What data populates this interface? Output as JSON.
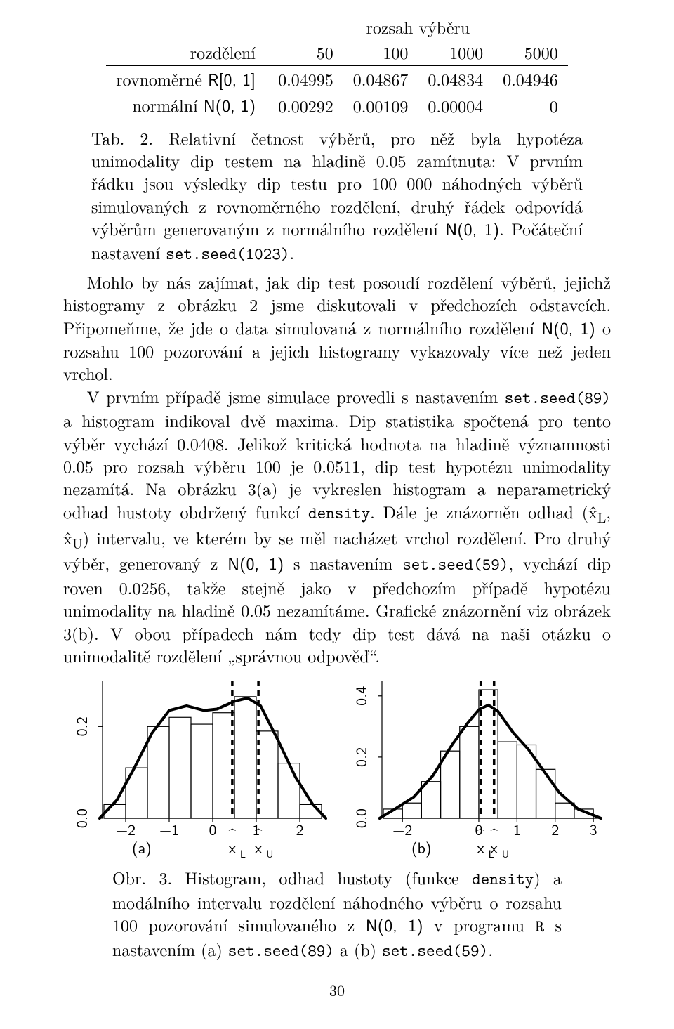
{
  "table": {
    "super_header": "rozsah výběru",
    "col_label": "rozdělení",
    "cols": [
      "50",
      "100",
      "1000",
      "5000"
    ],
    "rows": [
      {
        "label_prefix": "rovnoměrné ",
        "label_dist": "R[0, 1]",
        "vals": [
          "0.04995",
          "0.04867",
          "0.04834",
          "0.04946"
        ]
      },
      {
        "label_prefix": "normální ",
        "label_dist": "N(0, 1)",
        "vals": [
          "0.00292",
          "0.00109",
          "0.00004",
          "0"
        ]
      }
    ]
  },
  "tab_caption": {
    "lead": "Tab. 2. ",
    "text_a": "Relativní četnost výběrů, pro něž byla hypotéza unimodality dip testem na hladině 0.05 zamítnuta: V prvním řádku jsou výsledky dip testu pro 100 000 náhodných výběrů simulovaných z rovnoměrného rozdělení, druhý řádek odpovídá výběrům generovaným z normálního rozdělení ",
    "dist": "N(0, 1)",
    "text_b": ". Počáteční nastavení ",
    "code": "set.seed(1023)",
    "text_c": "."
  },
  "para1": {
    "a": "Mohlo by nás zajímat, jak dip test posoudí rozdělení výběrů, jejichž histogramy z obrázku 2 jsme diskutovali v předchozích odstavcích. Připomeňme, že jde o data simulovaná z normálního rozdělení ",
    "dist": "N(0, 1)",
    "b": " o rozsahu 100 pozorování a jejich histogramy vykazovaly více než jeden vrchol."
  },
  "para2": {
    "a": "V prvním případě jsme simulace provedli s nastavením ",
    "code1": "set.seed(89)",
    "b": " a histogram indikoval dvě maxima. Dip statistika spočtená pro tento výběr vychází 0.0408. Jelikož kritická hodnota na hladině významnosti 0.05 pro rozsah výběru 100 je 0.0511, dip test hypotézu unimodality nezamítá. Na obrázku 3(a) je vykreslen histogram a neparametrický odhad hustoty obdržený funkcí ",
    "code2": "density",
    "c": ". Dále je znázorněn odhad (x̂",
    "c2": ", x̂",
    "c3": ") intervalu, ve kterém by se měl nacházet vrchol rozdělení. Pro druhý výběr, generovaný z ",
    "dist": "N(0, 1)",
    "d": " s nastavením ",
    "code3": "set.seed(59)",
    "e": ", vychází dip roven 0.0256, takže stejně jako v předchozím případě hypotézu unimodality na hladině 0.05 nezamítáme. Grafické znázornění viz obrázek 3(b). V obou případech nám tedy dip test dává na naši otázku o unimodalitě rozdělení „správnou odpověď“."
  },
  "fig_caption": {
    "lead": "Obr. 3. ",
    "a": "Histogram, odhad hustoty (funkce ",
    "code1": "density",
    "b": ") a modálního intervalu rozdělení náhodného výběru o rozsahu 100 pozorování simulovaného z ",
    "dist": "N(0, 1)",
    "c": " v programu ",
    "codeR": "R",
    "d": " s nastavením (a) ",
    "code2": "set.seed(89)",
    "e": " a (b) ",
    "code3": "set.seed(59)",
    "f": "."
  },
  "page_number": "30",
  "chart_a": {
    "type": "histogram+density",
    "background_color": "#ffffff",
    "axis_color": "#000000",
    "bar_border_color": "#000000",
    "bar_fill": "none",
    "density_color": "#000000",
    "density_width": 4,
    "dashed_color": "#000000",
    "dash_pattern": "8,6",
    "xlim": [
      -2.5,
      2.5
    ],
    "ylim": [
      0.0,
      0.3
    ],
    "xticks": [
      -2,
      -1,
      0,
      1,
      2
    ],
    "yticks": [
      0.0,
      0.2
    ],
    "tick_fontsize": 22,
    "bin_edges": [
      -2.5,
      -2.0,
      -1.5,
      -1.0,
      -0.5,
      0.0,
      0.5,
      1.0,
      1.5,
      2.0,
      2.5
    ],
    "bin_heights": [
      0.03,
      0.11,
      0.2,
      0.22,
      0.205,
      0.23,
      0.265,
      0.19,
      0.12,
      0.03
    ],
    "density_points": [
      [
        -2.6,
        0.0
      ],
      [
        -2.2,
        0.04
      ],
      [
        -1.8,
        0.11
      ],
      [
        -1.4,
        0.185
      ],
      [
        -1.0,
        0.235
      ],
      [
        -0.6,
        0.245
      ],
      [
        -0.2,
        0.235
      ],
      [
        0.1,
        0.238
      ],
      [
        0.5,
        0.255
      ],
      [
        0.8,
        0.262
      ],
      [
        1.1,
        0.245
      ],
      [
        1.5,
        0.17
      ],
      [
        1.9,
        0.09
      ],
      [
        2.3,
        0.03
      ],
      [
        2.6,
        0.0
      ]
    ],
    "xhat_L": 0.45,
    "xhat_U": 1.05,
    "panel_label": "(a)",
    "xhatL_label": "x̂",
    "xhatL_sub": "L",
    "xhatU_label": "x̂",
    "xhatU_sub": "U"
  },
  "chart_b": {
    "type": "histogram+density",
    "background_color": "#ffffff",
    "axis_color": "#000000",
    "bar_border_color": "#000000",
    "bar_fill": "none",
    "density_color": "#000000",
    "density_width": 4,
    "dashed_color": "#000000",
    "dash_pattern": "8,6",
    "xlim": [
      -2.5,
      3.2
    ],
    "ylim": [
      0.0,
      0.45
    ],
    "xticks": [
      -2,
      0,
      1,
      2,
      3
    ],
    "yticks": [
      0.0,
      0.2,
      0.4
    ],
    "tick_fontsize": 22,
    "bin_edges": [
      -2.5,
      -2.0,
      -1.5,
      -1.0,
      -0.5,
      0.0,
      0.5,
      1.0,
      1.5,
      2.0,
      2.5,
      3.0
    ],
    "bin_heights": [
      0.03,
      0.05,
      0.12,
      0.22,
      0.3,
      0.42,
      0.25,
      0.24,
      0.16,
      0.05,
      0.03
    ],
    "density_points": [
      [
        -2.6,
        0.0
      ],
      [
        -2.2,
        0.03
      ],
      [
        -1.7,
        0.07
      ],
      [
        -1.2,
        0.14
      ],
      [
        -0.7,
        0.24
      ],
      [
        -0.3,
        0.31
      ],
      [
        0.0,
        0.355
      ],
      [
        0.25,
        0.37
      ],
      [
        0.5,
        0.35
      ],
      [
        0.9,
        0.28
      ],
      [
        1.3,
        0.225
      ],
      [
        1.7,
        0.155
      ],
      [
        2.1,
        0.085
      ],
      [
        2.6,
        0.03
      ],
      [
        3.0,
        0.01
      ],
      [
        3.2,
        0.0
      ]
    ],
    "xhat_L": 0.05,
    "xhat_U": 0.4,
    "panel_label": "(b)",
    "xhatL_label": "x̂",
    "xhatL_sub": "L",
    "xhatU_label": "x̂",
    "xhatU_sub": "U"
  }
}
